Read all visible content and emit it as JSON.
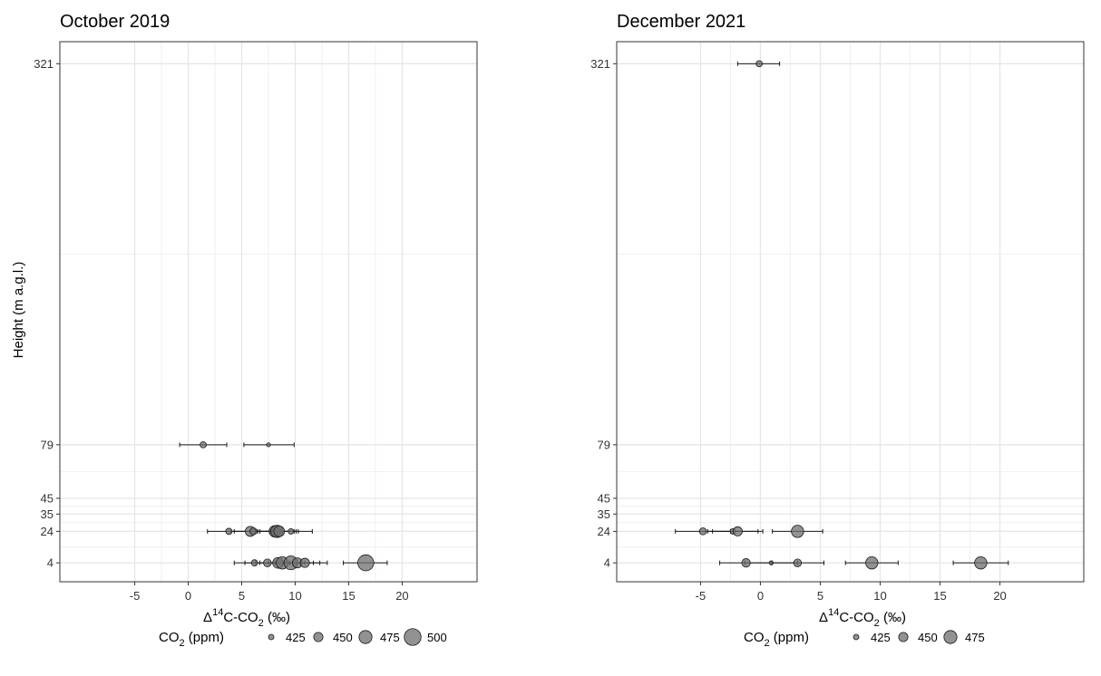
{
  "y_axis_label": "Height (m a.g.l.)",
  "x_axis_label_parts": {
    "delta": "Δ",
    "sup": "14",
    "c": "C-CO",
    "sub": "2",
    "unit": " (‰)"
  },
  "legend": {
    "title_main": "CO",
    "title_sub": "2",
    "title_unit": " (ppm)"
  },
  "colors": {
    "point_fill": "#6e6e6e",
    "point_stroke": "#1a1a1a",
    "errorbar": "#1a1a1a",
    "grid": "#e6e6e6",
    "frame": "#333333"
  },
  "chart_data": [
    {
      "type": "scatter",
      "title": "October 2019",
      "xlabel": "Δ14C-CO2 (‰)",
      "ylabel": "Height (m a.g.l.)",
      "xlim": [
        -12,
        27
      ],
      "xticks": [
        -5,
        0,
        5,
        10,
        15,
        20
      ],
      "ylim": [
        -8,
        335
      ],
      "yticks": [
        4,
        24,
        35,
        45,
        79,
        321
      ],
      "grid": true,
      "legend_position": "bottom",
      "size_legend": [
        425,
        450,
        475,
        500
      ],
      "points": [
        {
          "x": 1.4,
          "y": 79,
          "xmin": -0.8,
          "xmax": 3.6,
          "co2": 430
        },
        {
          "x": 7.5,
          "y": 79,
          "xmin": 5.2,
          "xmax": 9.9,
          "co2": 415
        },
        {
          "x": 3.8,
          "y": 24,
          "xmin": 1.8,
          "xmax": 5.8,
          "co2": 430
        },
        {
          "x": 5.8,
          "y": 24,
          "xmin": 4.0,
          "xmax": 7.6,
          "co2": 455
        },
        {
          "x": 6.1,
          "y": 24,
          "xmin": 4.3,
          "xmax": 7.9,
          "co2": 435
        },
        {
          "x": 8.1,
          "y": 24,
          "xmin": 6.3,
          "xmax": 9.9,
          "co2": 465
        },
        {
          "x": 8.3,
          "y": 24,
          "xmin": 6.5,
          "xmax": 10.1,
          "co2": 470
        },
        {
          "x": 8.5,
          "y": 24,
          "xmin": 6.7,
          "xmax": 10.3,
          "co2": 460
        },
        {
          "x": 9.6,
          "y": 24,
          "xmin": 7.7,
          "xmax": 11.6,
          "co2": 425
        },
        {
          "x": 6.2,
          "y": 4,
          "xmin": 4.3,
          "xmax": 8.1,
          "co2": 430
        },
        {
          "x": 7.4,
          "y": 4,
          "xmin": 5.3,
          "xmax": 9.5,
          "co2": 440
        },
        {
          "x": 8.4,
          "y": 4,
          "xmin": 6.3,
          "xmax": 10.5,
          "co2": 460
        },
        {
          "x": 8.8,
          "y": 4,
          "xmin": 6.7,
          "xmax": 10.9,
          "co2": 470
        },
        {
          "x": 9.6,
          "y": 4,
          "xmin": 7.5,
          "xmax": 11.7,
          "co2": 480
        },
        {
          "x": 10.2,
          "y": 4,
          "xmin": 8.1,
          "xmax": 12.3,
          "co2": 455
        },
        {
          "x": 10.9,
          "y": 4,
          "xmin": 8.8,
          "xmax": 13.0,
          "co2": 450
        },
        {
          "x": 16.6,
          "y": 4,
          "xmin": 14.5,
          "xmax": 18.6,
          "co2": 495
        }
      ]
    },
    {
      "type": "scatter",
      "title": "December 2021",
      "xlabel": "Δ14C-CO2 (‰)",
      "ylabel": "",
      "xlim": [
        -12,
        27
      ],
      "xticks": [
        -5,
        0,
        5,
        10,
        15,
        20
      ],
      "ylim": [
        -8,
        335
      ],
      "yticks": [
        4,
        24,
        35,
        45,
        79,
        321
      ],
      "grid": true,
      "legend_position": "bottom",
      "size_legend": [
        425,
        450,
        475
      ],
      "points": [
        {
          "x": -0.1,
          "y": 321,
          "xmin": -1.9,
          "xmax": 1.6,
          "co2": 430
        },
        {
          "x": -4.8,
          "y": 24,
          "xmin": -7.1,
          "xmax": -2.5,
          "co2": 435
        },
        {
          "x": -2.3,
          "y": 24,
          "xmin": -4.4,
          "xmax": -0.2,
          "co2": 425
        },
        {
          "x": -1.9,
          "y": 24,
          "xmin": -4.0,
          "xmax": 0.2,
          "co2": 450
        },
        {
          "x": 3.1,
          "y": 24,
          "xmin": 1.0,
          "xmax": 5.2,
          "co2": 470
        },
        {
          "x": -1.2,
          "y": 4,
          "xmin": -3.4,
          "xmax": 1.0,
          "co2": 445
        },
        {
          "x": 0.9,
          "y": 4,
          "xmin": -1.3,
          "xmax": 3.1,
          "co2": 415
        },
        {
          "x": 3.1,
          "y": 4,
          "xmin": 0.9,
          "xmax": 5.3,
          "co2": 440
        },
        {
          "x": 9.3,
          "y": 4,
          "xmin": 7.1,
          "xmax": 11.5,
          "co2": 470
        },
        {
          "x": 18.4,
          "y": 4,
          "xmin": 16.1,
          "xmax": 20.7,
          "co2": 470
        }
      ]
    }
  ]
}
